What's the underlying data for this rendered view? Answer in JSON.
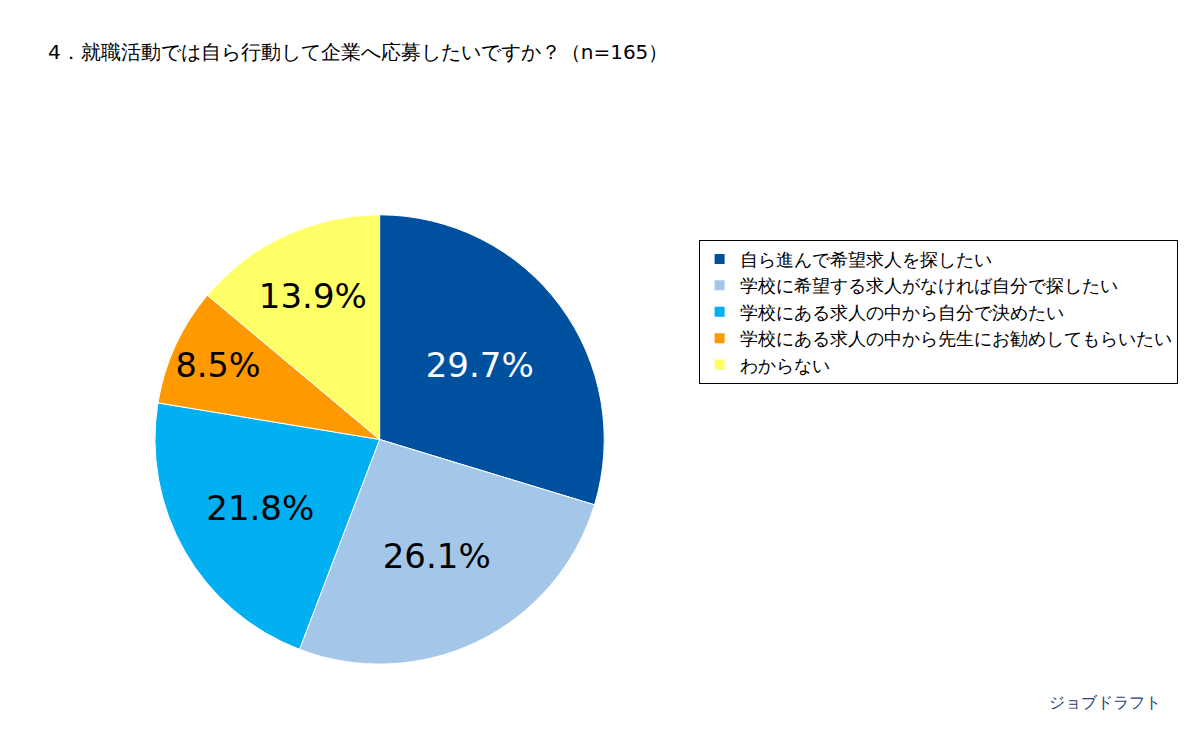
{
  "chart_data": {
    "type": "pie",
    "title": "4．就職活動では自ら行動して企業へ応募したいですか？（n=165）",
    "categories": [
      "自ら進んで希望求人を探したい",
      "学校に希望する求人がなければ自分で探したい",
      "学校にある求人の中から自分で決めたい",
      "学校にある求人の中から先生にお勧めしてもらいたい",
      "わからない"
    ],
    "values": [
      29.7,
      26.1,
      21.8,
      8.5,
      13.9
    ],
    "value_labels": [
      "29.7%",
      "26.1%",
      "21.8%",
      "8.5%",
      "13.9%"
    ],
    "colors": [
      "#0050a0",
      "#a4c6e8",
      "#00b0f0",
      "#ff9900",
      "#ffff66"
    ],
    "data_labels": true,
    "legend": "right",
    "annotations": [
      "ジョブドラフト"
    ]
  }
}
